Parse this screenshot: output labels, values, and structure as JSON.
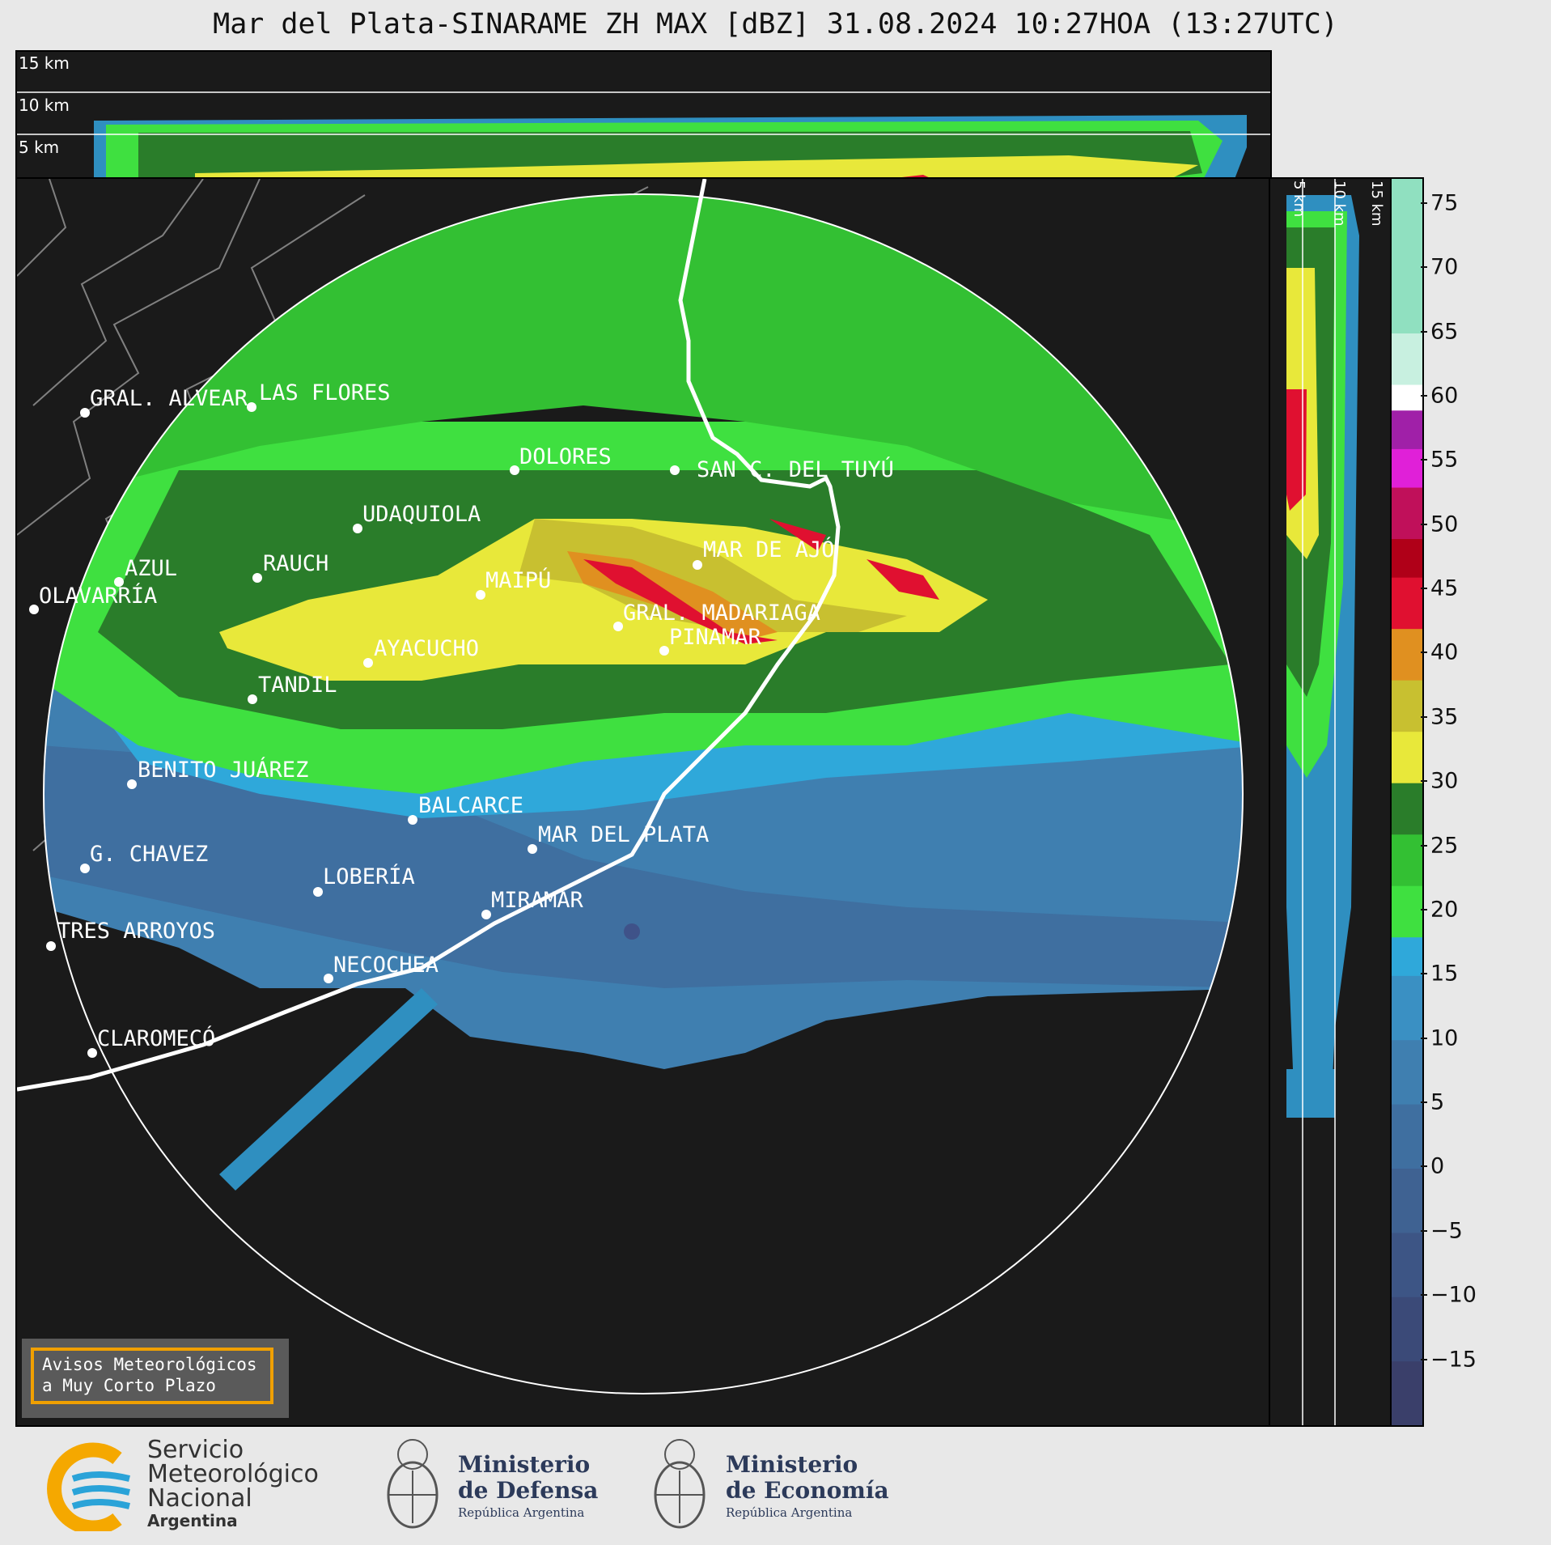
{
  "title": "Mar del Plata-SINARAME ZH MAX [dBZ] 31.08.2024 10:27HOA (13:27UTC)",
  "top_panel": {
    "altitude_labels": [
      "15 km",
      "10 km",
      "5 km"
    ]
  },
  "side_panel": {
    "altitude_labels": [
      "5 km",
      "10 km",
      "15 km"
    ]
  },
  "colorbar": {
    "unit": "dBZ",
    "ticks": [
      "75",
      "70",
      "65",
      "60",
      "55",
      "50",
      "45",
      "40",
      "35",
      "30",
      "25",
      "20",
      "15",
      "10",
      "5",
      "0",
      "−5",
      "−10",
      "−15"
    ],
    "range": [
      -20,
      77
    ],
    "colors": [
      {
        "from": -20,
        "to": -15,
        "hex": "#3a3f6a"
      },
      {
        "from": -15,
        "to": -10,
        "hex": "#3b4a78"
      },
      {
        "from": -10,
        "to": -5,
        "hex": "#3d5585"
      },
      {
        "from": -5,
        "to": 0,
        "hex": "#3f6292"
      },
      {
        "from": 0,
        "to": 5,
        "hex": "#3f6fa0"
      },
      {
        "from": 5,
        "to": 10,
        "hex": "#3f7fb0"
      },
      {
        "from": 10,
        "to": 15,
        "hex": "#3a90c3"
      },
      {
        "from": 15,
        "to": 18,
        "hex": "#2fa8da"
      },
      {
        "from": 18,
        "to": 22,
        "hex": "#3fe040"
      },
      {
        "from": 22,
        "to": 26,
        "hex": "#33c033"
      },
      {
        "from": 26,
        "to": 30,
        "hex": "#2a7d2a"
      },
      {
        "from": 30,
        "to": 34,
        "hex": "#e8e83a"
      },
      {
        "from": 34,
        "to": 38,
        "hex": "#c8c030"
      },
      {
        "from": 38,
        "to": 42,
        "hex": "#e09020"
      },
      {
        "from": 42,
        "to": 46,
        "hex": "#e01030"
      },
      {
        "from": 46,
        "to": 49,
        "hex": "#b00018"
      },
      {
        "from": 49,
        "to": 53,
        "hex": "#c0105a"
      },
      {
        "from": 53,
        "to": 56,
        "hex": "#e020d8"
      },
      {
        "from": 56,
        "to": 59,
        "hex": "#a020a8"
      },
      {
        "from": 59,
        "to": 61,
        "hex": "#ffffff"
      },
      {
        "from": 61,
        "to": 65,
        "hex": "#c8f0e0"
      },
      {
        "from": 65,
        "to": 77,
        "hex": "#90e0c0"
      }
    ]
  },
  "cities": [
    {
      "name": "GRAL. ALVEAR"
    },
    {
      "name": "LAS FLORES"
    },
    {
      "name": "DOLORES"
    },
    {
      "name": "SAN C. DEL TUYÚ"
    },
    {
      "name": "UDAQUIOLA"
    },
    {
      "name": "AZUL"
    },
    {
      "name": "RAUCH"
    },
    {
      "name": "OLAVARRÍA"
    },
    {
      "name": "MAIPÚ"
    },
    {
      "name": "MAR DE AJÓ"
    },
    {
      "name": "GRAL. MADARIAGA"
    },
    {
      "name": "PINAMAR"
    },
    {
      "name": "AYACUCHO"
    },
    {
      "name": "TANDIL"
    },
    {
      "name": "BENITO JUÁREZ"
    },
    {
      "name": "BALCARCE"
    },
    {
      "name": "MAR DEL PLATA"
    },
    {
      "name": "G. CHAVEZ"
    },
    {
      "name": "LOBERÍA"
    },
    {
      "name": "MIRAMAR"
    },
    {
      "name": "TRES ARROYOS"
    },
    {
      "name": "NECOCHEA"
    },
    {
      "name": "CLAROMECÓ"
    }
  ],
  "warning_box": {
    "line1": "Avisos Meteorológicos",
    "line2": "a Muy Corto Plazo"
  },
  "logos": {
    "smn": {
      "line1": "Servicio",
      "line2": "Meteorológico",
      "line3": "Nacional",
      "line4": "Argentina",
      "colors": [
        "#f5a800",
        "#2aa3d8"
      ]
    },
    "defensa": {
      "line1": "Ministerio",
      "line2": "de Defensa",
      "line3": "República Argentina"
    },
    "economia": {
      "line1": "Ministerio",
      "line2": "de Economía",
      "line3": "República Argentina"
    }
  }
}
